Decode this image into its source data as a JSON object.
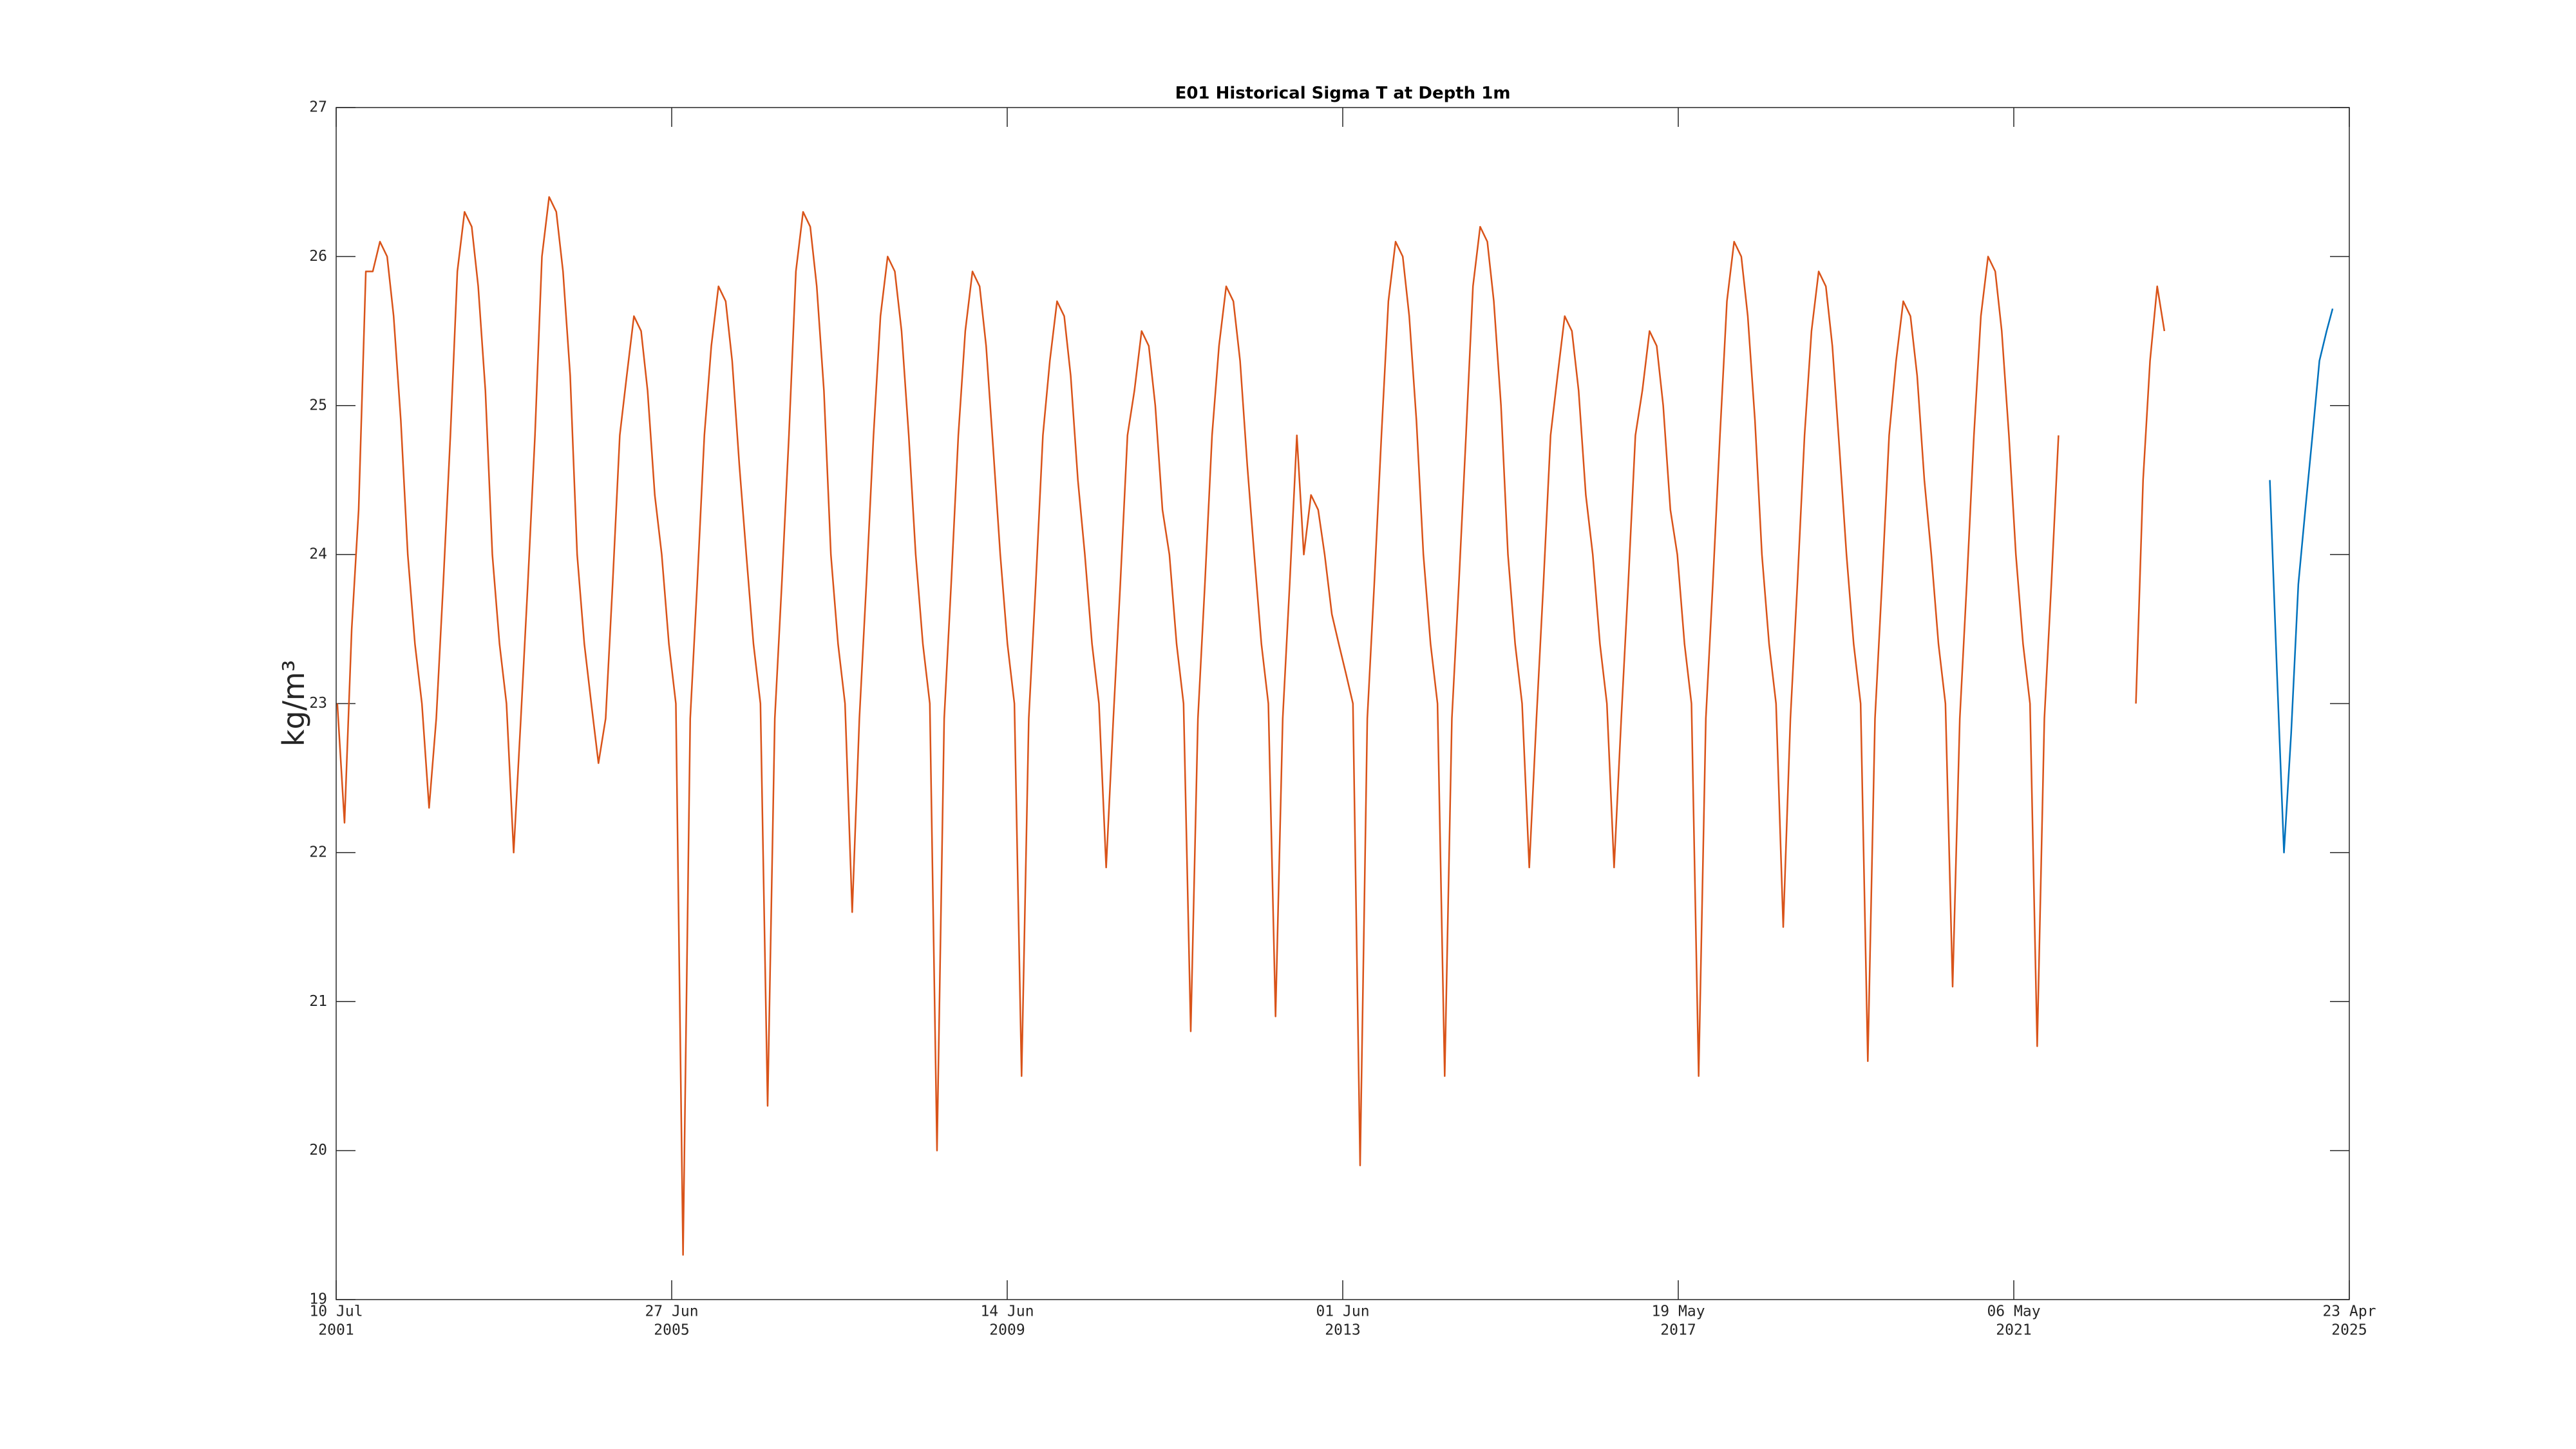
{
  "chart_data": {
    "type": "line",
    "title": "E01 Historical Sigma T at Depth 1m",
    "y_label": "kg/m³",
    "xlim": [
      "2001-07-10",
      "2025-04-23"
    ],
    "xticks": [
      {
        "value": "2001-07-10",
        "label": [
          "10 Jul",
          "2001"
        ]
      },
      {
        "value": "2005-06-27",
        "label": [
          "27 Jun",
          "2005"
        ]
      },
      {
        "value": "2009-06-14",
        "label": [
          "14 Jun",
          "2009"
        ]
      },
      {
        "value": "2013-06-01",
        "label": [
          "01 Jun",
          "2013"
        ]
      },
      {
        "value": "2017-05-19",
        "label": [
          "19 May",
          "2017"
        ]
      },
      {
        "value": "2021-05-06",
        "label": [
          "06 May",
          "2021"
        ]
      },
      {
        "value": "2025-04-23",
        "label": [
          "23 Apr",
          "2025"
        ]
      }
    ],
    "ylim": [
      19,
      27
    ],
    "yticks": [
      19,
      20,
      21,
      22,
      23,
      24,
      25,
      26,
      27
    ],
    "grid": false,
    "series": [
      {
        "color": "#d95319",
        "x": [
          "2001-07-15",
          "2001-08-15",
          "2001-09-15",
          "2001-10-15",
          "2001-11-15",
          "2001-12-15",
          "2002-01-15",
          "2002-02-15",
          "2002-03-15",
          "2002-04-15",
          "2002-05-15",
          "2002-06-15",
          "2002-07-15",
          "2002-08-15",
          "2002-09-15",
          "2002-10-15",
          "2002-11-15",
          "2002-12-15",
          "2003-01-15",
          "2003-02-15",
          "2003-03-15",
          "2003-04-15",
          "2003-05-15",
          "2003-06-15",
          "2003-07-15",
          "2003-08-15",
          "2003-09-15",
          "2003-10-15",
          "2003-11-15",
          "2003-12-15",
          "2004-01-15",
          "2004-02-15",
          "2004-03-15",
          "2004-04-15",
          "2004-05-15",
          "2004-06-15",
          "2004-07-15",
          "2004-08-15",
          "2004-09-15",
          "2004-10-15",
          "2004-11-15",
          "2004-12-15",
          "2005-01-15",
          "2005-02-15",
          "2005-03-15",
          "2005-04-15",
          "2005-05-15",
          "2005-06-15",
          "2005-07-15",
          "2005-08-15",
          "2005-09-15",
          "2005-10-15",
          "2005-11-15",
          "2005-12-15",
          "2006-01-15",
          "2006-02-15",
          "2006-03-15",
          "2006-04-15",
          "2006-05-15",
          "2006-06-15",
          "2006-07-15",
          "2006-08-15",
          "2006-09-15",
          "2006-10-15",
          "2006-11-15",
          "2006-12-15",
          "2007-01-15",
          "2007-02-15",
          "2007-03-15",
          "2007-04-15",
          "2007-05-15",
          "2007-06-15",
          "2007-07-15",
          "2007-08-15",
          "2007-09-15",
          "2007-10-15",
          "2007-11-15",
          "2007-12-15",
          "2008-01-15",
          "2008-02-15",
          "2008-03-15",
          "2008-04-15",
          "2008-05-15",
          "2008-06-15",
          "2008-07-15",
          "2008-08-15",
          "2008-09-15",
          "2008-10-15",
          "2008-11-15",
          "2008-12-15",
          "2009-01-15",
          "2009-02-15",
          "2009-03-15",
          "2009-04-15",
          "2009-05-15",
          "2009-06-15",
          "2009-07-15",
          "2009-08-15",
          "2009-09-15",
          "2009-10-15",
          "2009-11-15",
          "2009-12-15",
          "2010-01-15",
          "2010-02-15",
          "2010-03-15",
          "2010-04-15",
          "2010-05-15",
          "2010-06-15",
          "2010-07-15",
          "2010-08-15",
          "2010-09-15",
          "2010-10-15",
          "2010-11-15",
          "2010-12-15",
          "2011-01-15",
          "2011-02-15",
          "2011-03-15",
          "2011-04-15",
          "2011-05-15",
          "2011-06-15",
          "2011-07-15",
          "2011-08-15",
          "2011-09-15",
          "2011-10-15",
          "2011-11-15",
          "2011-12-15",
          "2012-01-15",
          "2012-02-15",
          "2012-03-15",
          "2012-04-15",
          "2012-05-15",
          "2012-06-15",
          "2012-07-15",
          "2012-08-15",
          "2012-09-15",
          "2012-10-15",
          "2012-11-15",
          "2012-12-15",
          "2013-01-15",
          "2013-02-15",
          "2013-03-15",
          "2013-04-15",
          "2013-05-15",
          "2013-06-15",
          "2013-07-15",
          "2013-08-15",
          "2013-09-15",
          "2013-10-15",
          "2013-11-15",
          "2013-12-15",
          "2014-01-15",
          "2014-02-15",
          "2014-03-15",
          "2014-04-15",
          "2014-05-15",
          "2014-06-15",
          "2014-07-15",
          "2014-08-15",
          "2014-09-15",
          "2014-10-15",
          "2014-11-15",
          "2014-12-15",
          "2015-01-15",
          "2015-02-15",
          "2015-03-15",
          "2015-04-15",
          "2015-05-15",
          "2015-06-15",
          "2015-07-15",
          "2015-08-15",
          "2015-09-15",
          "2015-10-15",
          "2015-11-15",
          "2015-12-15",
          "2016-01-15",
          "2016-02-15",
          "2016-03-15",
          "2016-04-15",
          "2016-05-15",
          "2016-06-15",
          "2016-07-15",
          "2016-08-15",
          "2016-09-15",
          "2016-10-15",
          "2016-11-15",
          "2016-12-15",
          "2017-01-15",
          "2017-02-15",
          "2017-03-15",
          "2017-04-15",
          "2017-05-15",
          "2017-06-15",
          "2017-07-15",
          "2017-08-15",
          "2017-09-15",
          "2017-10-15",
          "2017-11-15",
          "2017-12-15",
          "2018-01-15",
          "2018-02-15",
          "2018-03-15",
          "2018-04-15",
          "2018-05-15",
          "2018-06-15",
          "2018-07-15",
          "2018-08-15",
          "2018-09-15",
          "2018-10-15",
          "2018-11-15",
          "2018-12-15",
          "2019-01-15",
          "2019-02-15",
          "2019-03-15",
          "2019-04-15",
          "2019-05-15",
          "2019-06-15",
          "2019-07-15",
          "2019-08-15",
          "2019-09-15",
          "2019-10-15",
          "2019-11-15",
          "2019-12-15",
          "2020-01-15",
          "2020-02-15",
          "2020-03-15",
          "2020-04-15",
          "2020-05-15",
          "2020-06-15",
          "2020-07-15",
          "2020-08-15",
          "2020-09-15",
          "2020-10-15",
          "2020-11-15",
          "2020-12-15",
          "2021-01-15",
          "2021-02-15",
          "2021-03-15",
          "2021-04-15",
          "2021-05-15",
          "2021-06-15",
          "2021-07-15",
          "2021-08-15",
          "2021-09-15",
          "2021-10-15",
          "2021-11-15",
          "2021-12-15",
          "2022-10-15",
          "2022-11-15",
          "2022-12-15",
          "2023-01-15",
          "2023-02-15"
        ],
        "values": [
          23.0,
          22.2,
          23.5,
          24.3,
          25.9,
          25.9,
          26.1,
          26.0,
          25.6,
          24.9,
          24.0,
          23.4,
          23.0,
          22.3,
          22.9,
          23.8,
          24.8,
          25.9,
          26.3,
          26.2,
          25.8,
          25.1,
          24.0,
          23.4,
          23.0,
          22.0,
          22.9,
          23.8,
          24.8,
          26.0,
          26.4,
          26.3,
          25.9,
          25.2,
          24.0,
          23.4,
          23.0,
          22.6,
          22.9,
          23.8,
          24.8,
          25.2,
          25.6,
          25.5,
          25.1,
          24.4,
          24.0,
          23.4,
          23.0,
          19.3,
          22.9,
          23.8,
          24.8,
          25.4,
          25.8,
          25.7,
          25.3,
          24.6,
          24.0,
          23.4,
          23.0,
          20.3,
          22.9,
          23.8,
          24.8,
          25.9,
          26.3,
          26.2,
          25.8,
          25.1,
          24.0,
          23.4,
          23.0,
          21.6,
          22.9,
          23.8,
          24.8,
          25.6,
          26.0,
          25.9,
          25.5,
          24.8,
          24.0,
          23.4,
          23.0,
          20.0,
          22.9,
          23.8,
          24.8,
          25.5,
          25.9,
          25.8,
          25.4,
          24.7,
          24.0,
          23.4,
          23.0,
          20.5,
          22.9,
          23.8,
          24.8,
          25.3,
          25.7,
          25.6,
          25.2,
          24.5,
          24.0,
          23.4,
          23.0,
          21.9,
          22.9,
          23.8,
          24.8,
          25.1,
          25.5,
          25.4,
          25.0,
          24.3,
          24.0,
          23.4,
          23.0,
          20.8,
          22.9,
          23.8,
          24.8,
          25.4,
          25.8,
          25.7,
          25.3,
          24.6,
          24.0,
          23.4,
          23.0,
          20.9,
          22.9,
          23.8,
          24.8,
          24.0,
          24.4,
          24.3,
          24.0,
          23.6,
          23.4,
          23.2,
          23.0,
          19.9,
          22.9,
          23.8,
          24.8,
          25.7,
          26.1,
          26.0,
          25.6,
          24.9,
          24.0,
          23.4,
          23.0,
          20.5,
          22.9,
          23.8,
          24.8,
          25.8,
          26.2,
          26.1,
          25.7,
          25.0,
          24.0,
          23.4,
          23.0,
          21.9,
          22.9,
          23.8,
          24.8,
          25.2,
          25.6,
          25.5,
          25.1,
          24.4,
          24.0,
          23.4,
          23.0,
          21.9,
          22.9,
          23.8,
          24.8,
          25.1,
          25.5,
          25.4,
          25.0,
          24.3,
          24.0,
          23.4,
          23.0,
          20.5,
          22.9,
          23.8,
          24.8,
          25.7,
          26.1,
          26.0,
          25.6,
          24.9,
          24.0,
          23.4,
          23.0,
          21.5,
          22.9,
          23.8,
          24.8,
          25.5,
          25.9,
          25.8,
          25.4,
          24.7,
          24.0,
          23.4,
          23.0,
          20.6,
          22.9,
          23.8,
          24.8,
          25.3,
          25.7,
          25.6,
          25.2,
          24.5,
          24.0,
          23.4,
          23.0,
          21.1,
          22.9,
          23.8,
          24.8,
          25.6,
          26.0,
          25.9,
          25.5,
          24.8,
          24.0,
          23.4,
          23.0,
          20.7,
          22.9,
          23.8,
          24.8,
          null,
          23.0,
          24.5,
          25.3,
          25.8,
          25.5
        ]
      },
      {
        "color": "#0072bd",
        "x": [
          "2024-05-15",
          "2024-06-15",
          "2024-07-15",
          "2024-08-15",
          "2024-09-15",
          "2024-10-15",
          "2024-11-15",
          "2024-12-15",
          "2025-01-15",
          "2025-02-10"
        ],
        "values": [
          24.5,
          23.2,
          22.0,
          22.8,
          23.8,
          24.3,
          24.8,
          25.3,
          25.5,
          25.65
        ]
      }
    ]
  }
}
